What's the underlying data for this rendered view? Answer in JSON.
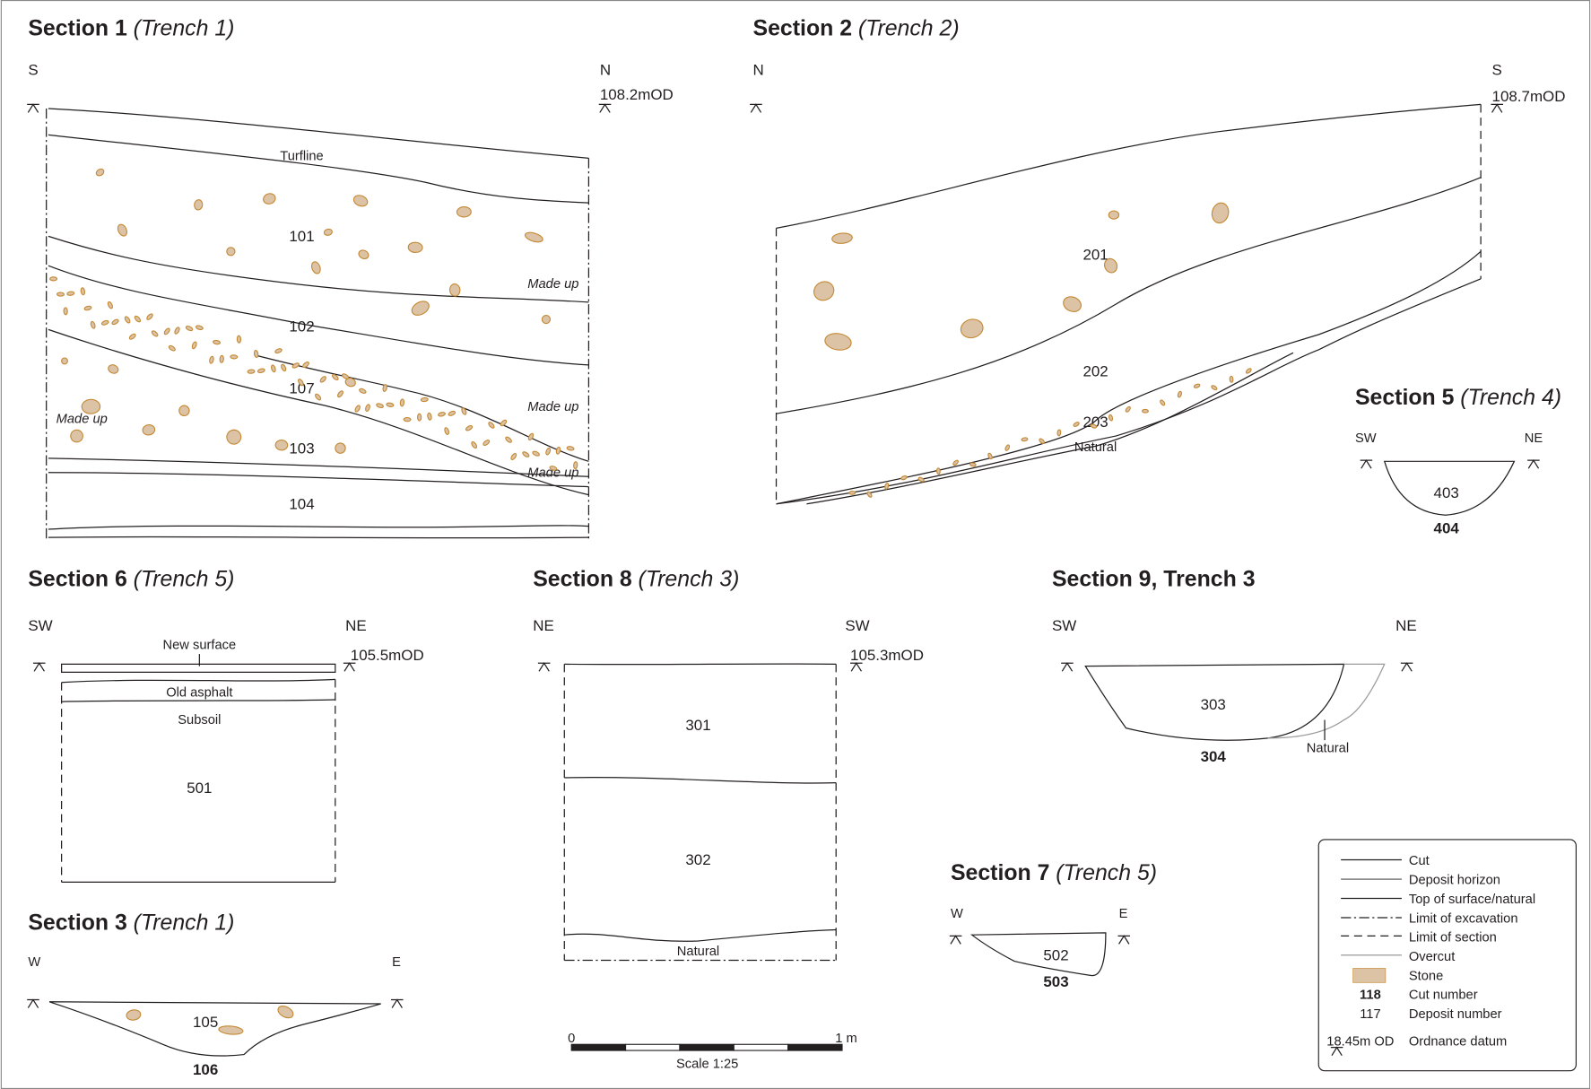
{
  "sections": [
    {
      "title": "Section 1",
      "trench": "(Trench 1)",
      "left": "S",
      "right": "N",
      "datum": "108.2mOD",
      "layers": [
        "Turfline",
        "101",
        "102",
        "107",
        "103",
        "104"
      ],
      "notes": [
        "Made up",
        "Made up",
        "Made up",
        "Made up"
      ]
    },
    {
      "title": "Section 2",
      "trench": "(Trench 2)",
      "left": "N",
      "right": "S",
      "datum": "108.7mOD",
      "layers": [
        "201",
        "202",
        "203",
        "Natural"
      ]
    },
    {
      "title": "Section 5",
      "trench": "(Trench 4)",
      "left": "SW",
      "right": "NE",
      "layers": [
        "403"
      ],
      "cut": "404"
    },
    {
      "title": "Section 6",
      "trench": "(Trench 5)",
      "left": "SW",
      "right": "NE",
      "datum": "105.5mOD",
      "layers": [
        "New surface",
        "Old asphalt",
        "Subsoil",
        "501"
      ]
    },
    {
      "title": "Section 8",
      "trench": "(Trench 3)",
      "left": "NE",
      "right": "SW",
      "datum": "105.3mOD",
      "layers": [
        "301",
        "302",
        "Natural"
      ]
    },
    {
      "title": "Section 9, Trench 3",
      "left": "SW",
      "right": "NE",
      "layers": [
        "303",
        "Natural"
      ],
      "cut": "304"
    },
    {
      "title": "Section 3",
      "trench": "(Trench 1)",
      "left": "W",
      "right": "E",
      "layers": [
        "105"
      ],
      "cut": "106"
    },
    {
      "title": "Section 7",
      "trench": "(Trench 5)",
      "left": "W",
      "right": "E",
      "layers": [
        "502"
      ],
      "cut": "503"
    }
  ],
  "legend": {
    "items": [
      "Cut",
      "Deposit horizon",
      "Top of surface/natural",
      "Limit of excavation",
      "Limit of section",
      "Overcut",
      "Stone"
    ],
    "cut_number": {
      "example": "118",
      "label": "Cut number"
    },
    "deposit_number": {
      "example": "117",
      "label": "Deposit number"
    },
    "datum": {
      "example": "18.45m OD",
      "label": "Ordnance datum"
    }
  },
  "scale": {
    "start": "0",
    "end": "1 m",
    "caption": "Scale 1:25"
  }
}
